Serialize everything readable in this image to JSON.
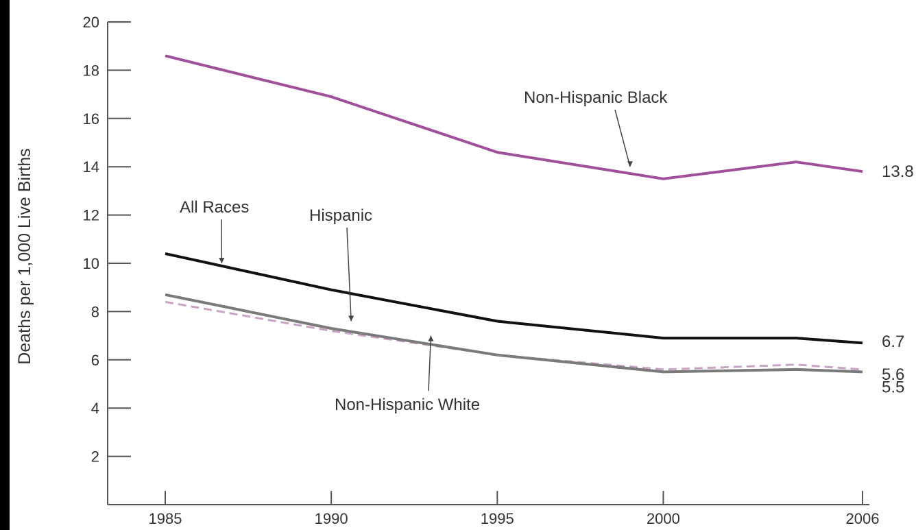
{
  "chart_data": {
    "type": "line",
    "ylabel": "Deaths per 1,000 Live Births",
    "xlabel": "",
    "x_ticks": [
      1985,
      1990,
      1995,
      2000,
      2006
    ],
    "y_ticks": [
      2,
      4,
      6,
      8,
      10,
      12,
      14,
      16,
      18,
      20
    ],
    "xlim": [
      1985,
      2006
    ],
    "ylim": [
      0,
      20
    ],
    "grid": false,
    "legend": "none (series labelled directly with annotation arrows)",
    "series": [
      {
        "name": "Non-Hispanic Black",
        "color": "#a0509a",
        "style": "solid",
        "points": [
          [
            1985,
            18.6
          ],
          [
            1990,
            16.9
          ],
          [
            1995,
            14.6
          ],
          [
            2000,
            13.5
          ],
          [
            2004,
            14.2
          ],
          [
            2006,
            13.8
          ]
        ],
        "end_value": "13.8"
      },
      {
        "name": "All Races",
        "color": "#111111",
        "style": "solid",
        "points": [
          [
            1985,
            10.4
          ],
          [
            1990,
            8.9
          ],
          [
            1995,
            7.6
          ],
          [
            2000,
            6.9
          ],
          [
            2004,
            6.9
          ],
          [
            2006,
            6.7
          ]
        ],
        "end_value": "6.7"
      },
      {
        "name": "Hispanic",
        "color": "#c9a3c6",
        "style": "dashed",
        "points": [
          [
            1985,
            8.4
          ],
          [
            1990,
            7.2
          ],
          [
            1995,
            6.2
          ],
          [
            2000,
            5.6
          ],
          [
            2004,
            5.8
          ],
          [
            2006,
            5.6
          ]
        ],
        "end_value": "5.6"
      },
      {
        "name": "Non-Hispanic White",
        "color": "#7a7a7a",
        "style": "solid",
        "points": [
          [
            1985,
            8.7
          ],
          [
            1990,
            7.3
          ],
          [
            1995,
            6.2
          ],
          [
            2000,
            5.5
          ],
          [
            2004,
            5.6
          ],
          [
            2006,
            5.5
          ]
        ],
        "end_value": "5.5"
      }
    ],
    "annotations": [
      {
        "text": "Non-Hispanic Black",
        "arrow_to": [
          1999,
          14.0
        ]
      },
      {
        "text": "All Races",
        "arrow_to": [
          1986.7,
          10.0
        ]
      },
      {
        "text": "Hispanic",
        "arrow_to": [
          1990.6,
          7.6
        ]
      },
      {
        "text": "Non-Hispanic White",
        "arrow_to": [
          1993,
          7.0
        ]
      }
    ]
  }
}
